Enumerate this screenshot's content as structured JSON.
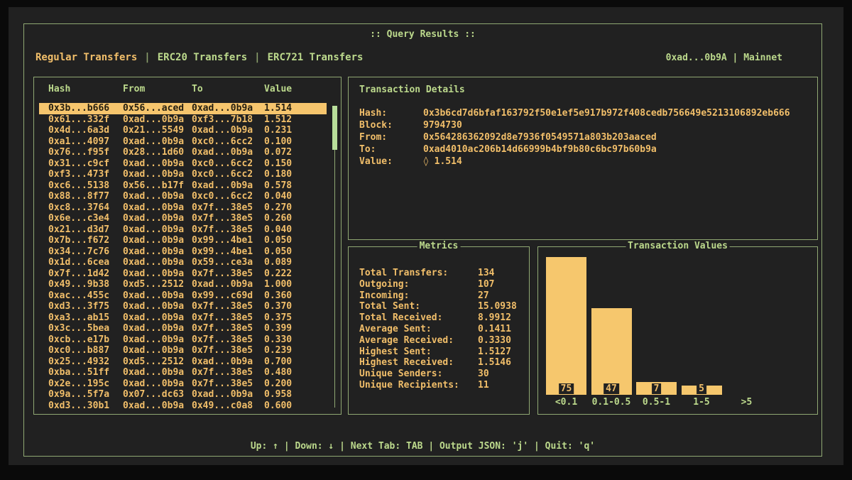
{
  "window": {
    "title": ":: Query Results ::",
    "account": "0xad...0b9A",
    "separator": " | ",
    "network": "Mainnet"
  },
  "tab_separator": "|",
  "tabs": [
    {
      "label": "Regular Transfers",
      "active": true
    },
    {
      "label": "ERC20 Transfers",
      "active": false
    },
    {
      "label": "ERC721 Transfers",
      "active": false
    }
  ],
  "table": {
    "columns": [
      "Hash",
      "From",
      "To",
      "Value"
    ],
    "selected_index": 0,
    "rows": [
      [
        "0x3b...b666",
        "0x56...aced",
        "0xad...0b9a",
        "1.514"
      ],
      [
        "0x61...332f",
        "0xad...0b9a",
        "0xf3...7b18",
        "1.512"
      ],
      [
        "0x4d...6a3d",
        "0x21...5549",
        "0xad...0b9a",
        "0.231"
      ],
      [
        "0xa1...4097",
        "0xad...0b9a",
        "0xc0...6cc2",
        "0.100"
      ],
      [
        "0x76...f95f",
        "0x28...1d60",
        "0xad...0b9a",
        "0.072"
      ],
      [
        "0x31...c9cf",
        "0xad...0b9a",
        "0xc0...6cc2",
        "0.150"
      ],
      [
        "0xf3...473f",
        "0xad...0b9a",
        "0xc0...6cc2",
        "0.180"
      ],
      [
        "0xc6...5138",
        "0x56...b17f",
        "0xad...0b9a",
        "0.578"
      ],
      [
        "0x88...8f77",
        "0xad...0b9a",
        "0xc0...6cc2",
        "0.040"
      ],
      [
        "0xc8...3764",
        "0xad...0b9a",
        "0x7f...38e5",
        "0.270"
      ],
      [
        "0x6e...c3e4",
        "0xad...0b9a",
        "0x7f...38e5",
        "0.260"
      ],
      [
        "0x21...d3d7",
        "0xad...0b9a",
        "0x7f...38e5",
        "0.040"
      ],
      [
        "0x7b...f672",
        "0xad...0b9a",
        "0x99...4be1",
        "0.050"
      ],
      [
        "0x34...7c76",
        "0xad...0b9a",
        "0x99...4be1",
        "0.050"
      ],
      [
        "0x1d...6cea",
        "0xad...0b9a",
        "0x59...ce3a",
        "0.089"
      ],
      [
        "0x7f...1d42",
        "0xad...0b9a",
        "0x7f...38e5",
        "0.222"
      ],
      [
        "0x49...9b38",
        "0xd5...2512",
        "0xad...0b9a",
        "1.000"
      ],
      [
        "0xac...455c",
        "0xad...0b9a",
        "0x99...c69d",
        "0.360"
      ],
      [
        "0xd3...3f75",
        "0xad...0b9a",
        "0x7f...38e5",
        "0.370"
      ],
      [
        "0xa3...ab15",
        "0xad...0b9a",
        "0x7f...38e5",
        "0.375"
      ],
      [
        "0x3c...5bea",
        "0xad...0b9a",
        "0x7f...38e5",
        "0.399"
      ],
      [
        "0xcb...e17b",
        "0xad...0b9a",
        "0x7f...38e5",
        "0.330"
      ],
      [
        "0xc0...b887",
        "0xad...0b9a",
        "0x7f...38e5",
        "0.239"
      ],
      [
        "0x25...4932",
        "0xd5...2512",
        "0xad...0b9a",
        "0.700"
      ],
      [
        "0xba...51ff",
        "0xad...0b9a",
        "0x7f...38e5",
        "0.480"
      ],
      [
        "0x2e...195c",
        "0xad...0b9a",
        "0x7f...38e5",
        "0.200"
      ],
      [
        "0x9a...5f7a",
        "0x07...dc63",
        "0xad...0b9a",
        "0.958"
      ],
      [
        "0xd3...30b1",
        "0xad...0b9a",
        "0x49...c0a8",
        "0.600"
      ]
    ]
  },
  "details": {
    "title": "Transaction Details",
    "eth_symbol": "◊",
    "fields": [
      {
        "label": "Hash:",
        "value": "0x3b6cd7d6bfaf163792f50e1ef5e917b972f408cedb756649e5213106892eb666"
      },
      {
        "label": "Block:",
        "value": "9794730"
      },
      {
        "label": "From:",
        "value": "0x564286362092d8e7936f0549571a803b203aaced"
      },
      {
        "label": "To:",
        "value": "0xad4010ac206b14d66999b4bf9b80c6bc97b60b9a"
      },
      {
        "label": "Value:",
        "value": "◊ 1.514"
      }
    ]
  },
  "metrics": {
    "title": "Metrics",
    "items": [
      {
        "label": "Total Transfers:",
        "value": "134"
      },
      {
        "label": "Outgoing:",
        "value": "107"
      },
      {
        "label": "Incoming:",
        "value": "27"
      },
      {
        "label": "Total Sent:",
        "value": "15.0938"
      },
      {
        "label": "Total Received:",
        "value": "8.9912"
      },
      {
        "label": "Average Sent:",
        "value": "0.1411"
      },
      {
        "label": "Average Received:",
        "value": "0.3330"
      },
      {
        "label": "Highest Sent:",
        "value": "1.5127"
      },
      {
        "label": "Highest Received:",
        "value": "1.5146"
      },
      {
        "label": "Unique Senders:",
        "value": "30"
      },
      {
        "label": "Unique Recipients:",
        "value": "11"
      }
    ]
  },
  "chart_data": {
    "type": "bar",
    "title": "Transaction Values",
    "categories": [
      "<0.1",
      "0.1-0.5",
      "0.5-1",
      "1-5",
      ">5"
    ],
    "values": [
      75,
      47,
      7,
      5,
      0
    ],
    "xlabel": "",
    "ylabel": "",
    "ylim": [
      0,
      75
    ],
    "grid": false,
    "legend": "none",
    "bar_color": "#f6c76d"
  },
  "footer": {
    "text": "Up: ↑ | Down: ↓ | Next Tab: TAB | Output JSON: 'j' | Quit: 'q'"
  },
  "colors": {
    "background": "#0a0a0a",
    "terminal_bg": "#212121",
    "border_green": "#90a873",
    "text_green": "#bcd98c",
    "dim_green": "#8ba06c",
    "text_orange": "#f2bf6a",
    "selected_bg": "#f6c56d",
    "selected_text": "#241e10",
    "scrollbar_thumb": "#b9de9b",
    "bar_fill": "#f6c76d"
  }
}
